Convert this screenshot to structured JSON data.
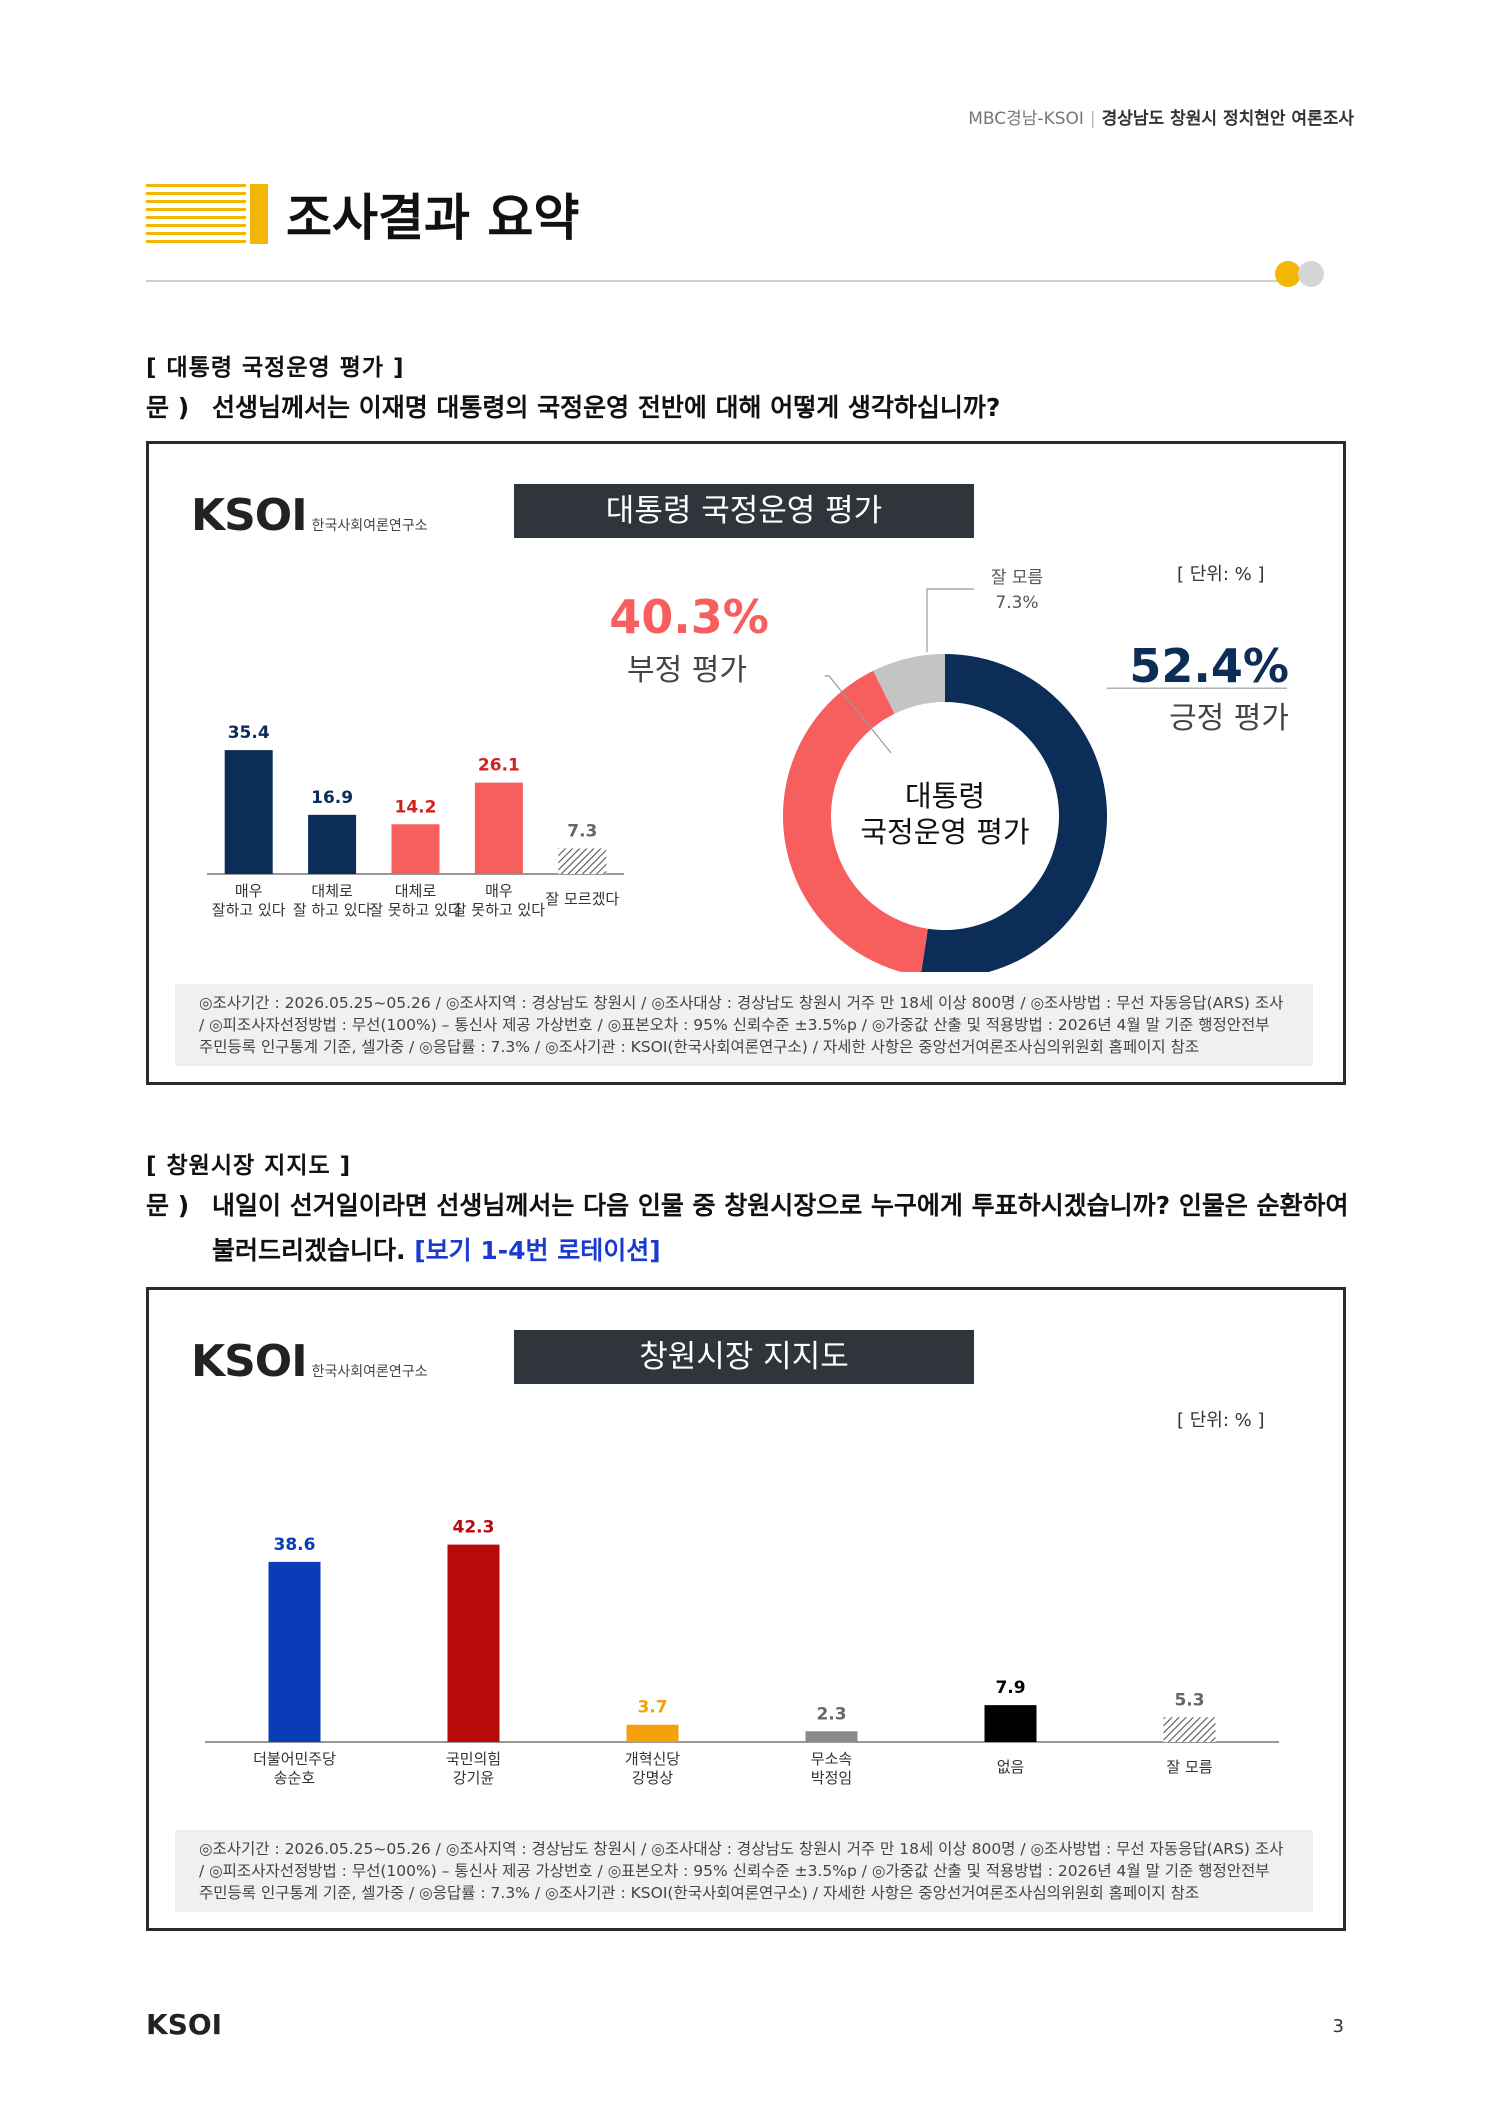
{
  "header": {
    "source": "MBC경남-KSOI",
    "survey_name": "경상남도 창원시 정치현안 여론조사"
  },
  "page_title": "조사결과 요약",
  "section1": {
    "label": "[ 대통령 국정운영 평가 ]",
    "q_marker": "문 )",
    "question": "선생님께서는 이재명 대통령의 국정운영 전반에 대해 어떻게 생각하십니까?"
  },
  "section2": {
    "label": "[ 창원시장 지지도 ]",
    "q_marker": "문 )",
    "question_line1": "내일이 선거일이라면 선생님께서는 다음 인물 중 창원시장으로 누구에게 투표하시겠습니까? 인물은 순환하여",
    "question_line2": "불러드리겠습니다.",
    "question_note": "[보기 1-4번 로테이션]"
  },
  "brand": {
    "logo": "KSOI",
    "subtitle": "한국사회여론연구소"
  },
  "colors": {
    "navy": "#0b2d57",
    "coral": "#f75e5e",
    "gray": "#c4c4c4",
    "blue": "#0a3cb8",
    "red": "#b90a0a",
    "orange": "#f5a00a",
    "midgray": "#8a8a8a",
    "black": "#000000",
    "accent": "#f2b705"
  },
  "footnote": {
    "line1": "◎조사기간 : 2026.05.25~05.26 / ◎조사지역 : 경상남도 창원시 / ◎조사대상 : 경상남도 창원시 거주 만 18세 이상 800명 / ◎조사방법 : 무선 자동응답(ARS) 조사",
    "line2": "/ ◎피조사자선정방법 : 무선(100%) – 통신사 제공 가상번호 / ◎표본오차 : 95% 신뢰수준 ±3.5%p / ◎가중값 산출 및 적용방법 : 2026년 4월 말 기준 행정안전부",
    "line3": "주민등록 인구통계 기준, 셀가중 / ◎응답률 : 7.3% / ◎조사기관 : KSOI(한국사회여론연구소) / 자세한 사항은 중앙선거여론조사심의위원회 홈페이지 참조"
  },
  "chart_data": [
    {
      "type": "bar",
      "title": "대통령 국정운영 평가",
      "unit": "[ 단위: % ]",
      "categories": [
        [
          "매우",
          "잘하고 있다"
        ],
        [
          "대체로",
          "잘 하고 있다"
        ],
        [
          "대체로",
          "잘 못하고 있다"
        ],
        [
          "매우",
          "잘 못하고 있다"
        ],
        [
          "잘 모르겠다"
        ]
      ],
      "values": [
        35.4,
        16.9,
        14.2,
        26.1,
        7.3
      ],
      "value_labels": [
        "35.4",
        "16.9",
        "14.2",
        "26.1",
        "7.3"
      ],
      "bar_colors": [
        "#0b2d57",
        "#0b2d57",
        "#f75e5e",
        "#f75e5e",
        "hatch"
      ],
      "label_colors": [
        "#0b2d57",
        "#0b2d57",
        "#d12020",
        "#d12020",
        "#666666"
      ],
      "ylim": [
        0,
        40
      ]
    },
    {
      "type": "pie",
      "title": "대통령 국정운영 평가",
      "center_label": [
        "대통령",
        "국정운영 평가"
      ],
      "slices": [
        {
          "name": "긍정 평가",
          "value": 52.4,
          "label": "52.4%",
          "color": "#0b2d57"
        },
        {
          "name": "부정 평가",
          "value": 40.3,
          "label": "40.3%",
          "color": "#f75e5e"
        },
        {
          "name": "잘 모름",
          "value": 7.3,
          "label": "7.3%",
          "color": "#c4c4c4"
        }
      ]
    },
    {
      "type": "bar",
      "title": "창원시장 지지도",
      "unit": "[ 단위: % ]",
      "categories": [
        [
          "더불어민주당",
          "송순호"
        ],
        [
          "국민의힘",
          "강기윤"
        ],
        [
          "개혁신당",
          "강명상"
        ],
        [
          "무소속",
          "박정임"
        ],
        [
          "없음"
        ],
        [
          "잘 모름"
        ]
      ],
      "values": [
        38.6,
        42.3,
        3.7,
        2.3,
        7.9,
        5.3
      ],
      "value_labels": [
        "38.6",
        "42.3",
        "3.7",
        "2.3",
        "7.9",
        "5.3"
      ],
      "bar_colors": [
        "#0a3cb8",
        "#b90a0a",
        "#f5a00a",
        "#8a8a8a",
        "#000000",
        "hatch"
      ],
      "label_colors": [
        "#0a3cb8",
        "#b90a0a",
        "#f5a00a",
        "#666666",
        "#000000",
        "#666666"
      ],
      "ylim": [
        0,
        45
      ]
    }
  ],
  "footer": {
    "brand": "KSOI",
    "page_number": "3"
  }
}
